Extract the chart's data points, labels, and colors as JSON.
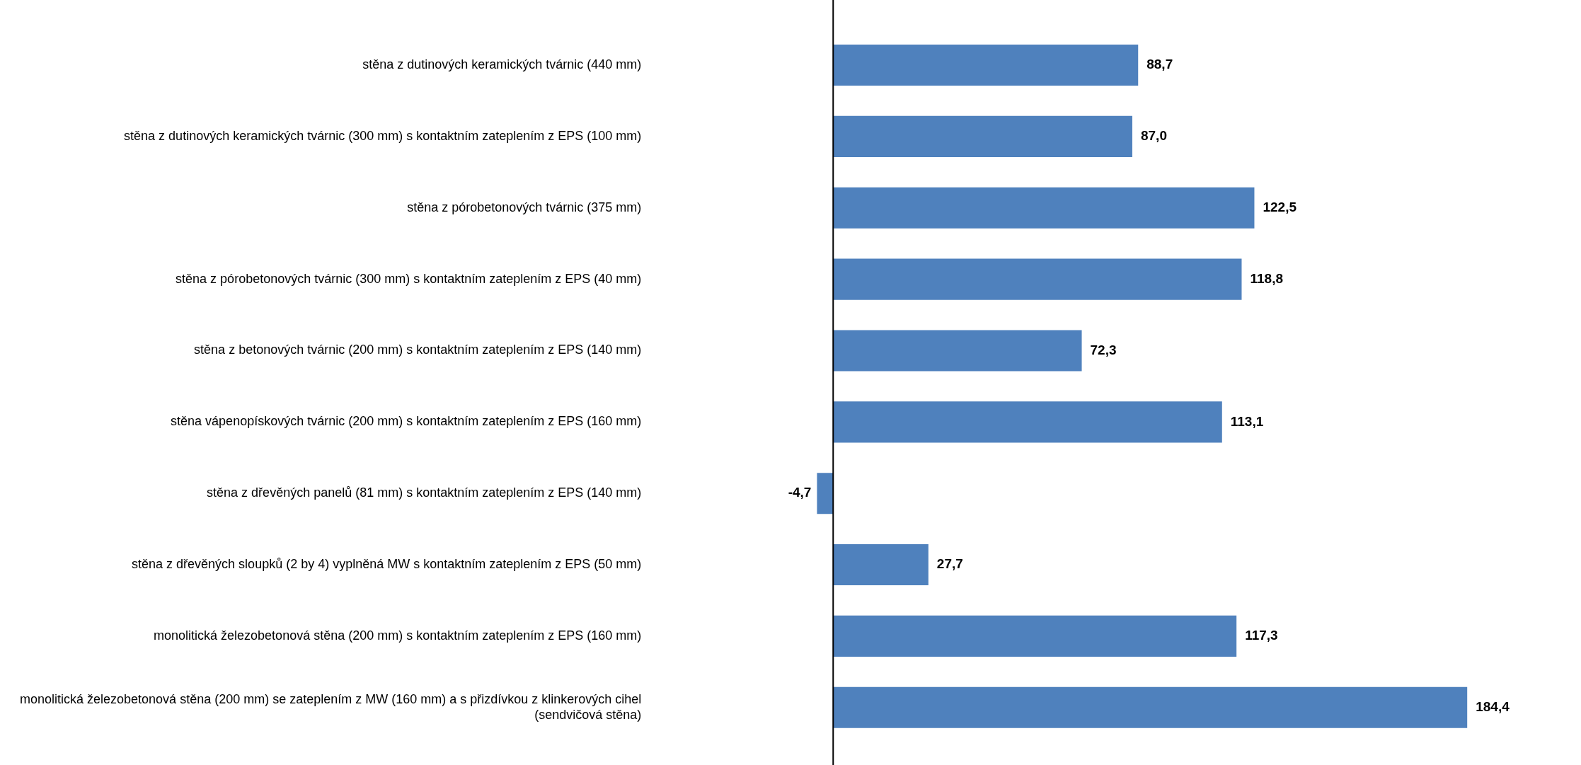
{
  "chart_data": {
    "type": "bar",
    "orientation": "horizontal",
    "categories": [
      "stěna z dutinových keramických tvárnic (440 mm)",
      "stěna z dutinových keramických tvárnic (300 mm) s kontaktním zateplením z EPS (100 mm)",
      "stěna z pórobetonových tvárnic (375 mm)",
      "stěna z pórobetonových tvárnic (300 mm) s kontaktním zateplením z EPS (40 mm)",
      "stěna z betonových tvárnic (200 mm) s kontaktním zateplením z EPS (140 mm)",
      "stěna vápenopískových tvárnic (200 mm) s kontaktním zateplením z EPS (160 mm)",
      "stěna z dřevěných panelů (81 mm) s kontaktním zateplením z EPS (140 mm)",
      "stěna z dřevěných sloupků (2 by 4) vyplněná MW s kontaktním zateplením z EPS (50 mm)",
      "monolitická železobetonová stěna (200 mm) s kontaktním zateplením z EPS (160 mm)",
      "monolitická železobetonová stěna (200 mm) se zateplením z MW (160 mm) a s přizdívkou z klinkerových cihel (sendvičová stěna)"
    ],
    "values": [
      88.7,
      87.0,
      122.5,
      118.8,
      72.3,
      113.1,
      -4.7,
      27.7,
      117.3,
      184.4
    ],
    "value_labels": [
      "88,7",
      "87,0",
      "122,5",
      "118,8",
      "72,3",
      "113,1",
      "-4,7",
      "27,7",
      "117,3",
      "184,4"
    ],
    "color": "#4f81bd"
  }
}
